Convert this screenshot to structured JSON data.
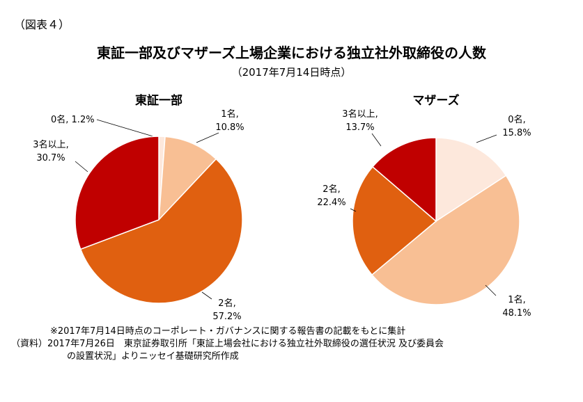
{
  "figure_label": "（図表４）",
  "title": "東証一部及びマザーズ上場企業における独立社外取締役の人数",
  "subtitle": "（2017年7月14日時点）",
  "chart_data": [
    {
      "type": "pie",
      "title": "東証一部",
      "slices": [
        {
          "label": "0名",
          "value": 1.2,
          "display": "0名, 1.2%",
          "color": "#fde8dc"
        },
        {
          "label": "1名",
          "value": 10.8,
          "display": "1名,|10.8%",
          "color": "#f8bf94"
        },
        {
          "label": "2名",
          "value": 57.2,
          "display": "2名,|57.2%",
          "color": "#e06010"
        },
        {
          "label": "3名以上",
          "value": 30.7,
          "display": "3名以上,|30.7%",
          "color": "#c00000"
        }
      ]
    },
    {
      "type": "pie",
      "title": "マザーズ",
      "slices": [
        {
          "label": "0名",
          "value": 15.8,
          "display": "0名,|15.8%",
          "color": "#fde8dc"
        },
        {
          "label": "1名",
          "value": 48.1,
          "display": "1名,|48.1%",
          "color": "#f8bf94"
        },
        {
          "label": "2名",
          "value": 22.4,
          "display": "2名,|22.4%",
          "color": "#e06010"
        },
        {
          "label": "3名以上",
          "value": 13.7,
          "display": "3名以上,|13.7%",
          "color": "#c00000"
        }
      ]
    }
  ],
  "notes": {
    "line1": "※2017年7月14日時点のコーポレート・ガバナンスに関する報告書の記載をもとに集計",
    "line2": "（資料）2017年7月26日　東京証券取引所「東証上場会社における独立社外取締役の選任状況 及び委員会",
    "line3": "の設置状況」よりニッセイ基礎研究所作成"
  }
}
